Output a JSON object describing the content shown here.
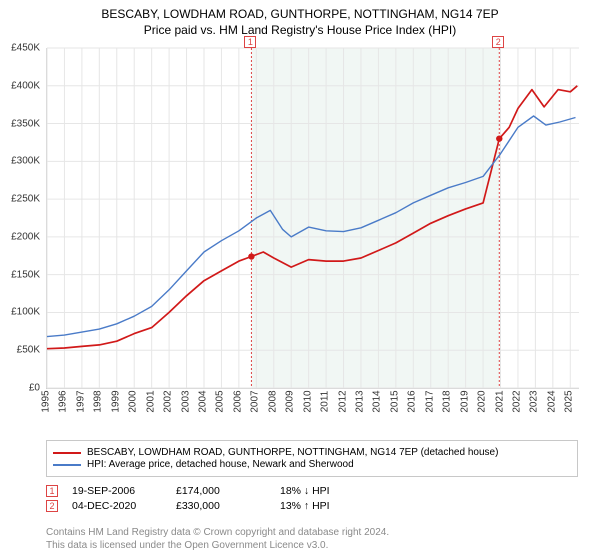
{
  "title_line1": "BESCABY, LOWDHAM ROAD, GUNTHORPE, NOTTINGHAM, NG14 7EP",
  "title_line2": "Price paid vs. HM Land Registry's House Price Index (HPI)",
  "chart": {
    "type": "line",
    "background_color": "#ffffff",
    "grid_color": "#e6e6e6",
    "shade_color": "#e6f0eb",
    "xlim": [
      1995,
      2025.5
    ],
    "ylim": [
      0,
      450000
    ],
    "ytick_step": 50000,
    "yticks_labels": [
      "£0",
      "£50K",
      "£100K",
      "£150K",
      "£200K",
      "£250K",
      "£300K",
      "£350K",
      "£400K",
      "£450K"
    ],
    "xticks": [
      1995,
      1996,
      1997,
      1998,
      1999,
      2000,
      2001,
      2002,
      2003,
      2004,
      2005,
      2006,
      2007,
      2008,
      2009,
      2010,
      2011,
      2012,
      2013,
      2014,
      2015,
      2016,
      2017,
      2018,
      2019,
      2020,
      2021,
      2022,
      2023,
      2024,
      2025
    ],
    "series": [
      {
        "name": "subject",
        "color": "#d11919",
        "width": 1.7,
        "label": "BESCABY, LOWDHAM ROAD, GUNTHORPE, NOTTINGHAM, NG14 7EP (detached house)",
        "points": [
          [
            1995,
            52000
          ],
          [
            1996,
            53000
          ],
          [
            1997,
            55000
          ],
          [
            1998,
            57000
          ],
          [
            1999,
            62000
          ],
          [
            2000,
            72000
          ],
          [
            2001,
            80000
          ],
          [
            2002,
            100000
          ],
          [
            2003,
            122000
          ],
          [
            2004,
            142000
          ],
          [
            2005,
            155000
          ],
          [
            2006,
            168000
          ],
          [
            2006.72,
            174000
          ],
          [
            2007.4,
            180000
          ],
          [
            2008,
            172000
          ],
          [
            2009,
            160000
          ],
          [
            2010,
            170000
          ],
          [
            2011,
            168000
          ],
          [
            2012,
            168000
          ],
          [
            2013,
            172000
          ],
          [
            2014,
            182000
          ],
          [
            2015,
            192000
          ],
          [
            2016,
            205000
          ],
          [
            2017,
            218000
          ],
          [
            2018,
            228000
          ],
          [
            2019,
            237000
          ],
          [
            2020,
            245000
          ],
          [
            2020.93,
            330000
          ],
          [
            2021.5,
            345000
          ],
          [
            2022,
            370000
          ],
          [
            2022.8,
            395000
          ],
          [
            2023.5,
            372000
          ],
          [
            2024.3,
            395000
          ],
          [
            2025,
            392000
          ],
          [
            2025.4,
            400000
          ]
        ]
      },
      {
        "name": "hpi",
        "color": "#4a7bc8",
        "width": 1.4,
        "label": "HPI: Average price, detached house, Newark and Sherwood",
        "points": [
          [
            1995,
            68000
          ],
          [
            1996,
            70000
          ],
          [
            1997,
            74000
          ],
          [
            1998,
            78000
          ],
          [
            1999,
            85000
          ],
          [
            2000,
            95000
          ],
          [
            2001,
            108000
          ],
          [
            2002,
            130000
          ],
          [
            2003,
            155000
          ],
          [
            2004,
            180000
          ],
          [
            2005,
            195000
          ],
          [
            2006,
            208000
          ],
          [
            2007,
            225000
          ],
          [
            2007.8,
            235000
          ],
          [
            2008.5,
            210000
          ],
          [
            2009,
            200000
          ],
          [
            2010,
            213000
          ],
          [
            2011,
            208000
          ],
          [
            2012,
            207000
          ],
          [
            2013,
            212000
          ],
          [
            2014,
            222000
          ],
          [
            2015,
            232000
          ],
          [
            2016,
            245000
          ],
          [
            2017,
            255000
          ],
          [
            2018,
            265000
          ],
          [
            2019,
            272000
          ],
          [
            2020,
            280000
          ],
          [
            2021,
            310000
          ],
          [
            2022,
            345000
          ],
          [
            2022.9,
            360000
          ],
          [
            2023.6,
            348000
          ],
          [
            2024.4,
            352000
          ],
          [
            2025.3,
            358000
          ]
        ]
      }
    ],
    "markers": [
      {
        "n": "1",
        "x": 2006.72,
        "y": 174000
      },
      {
        "n": "2",
        "x": 2020.93,
        "y": 330000
      }
    ]
  },
  "legend": {
    "row1": "BESCABY, LOWDHAM ROAD, GUNTHORPE, NOTTINGHAM, NG14 7EP (detached house)",
    "row2": "HPI: Average price, detached house, Newark and Sherwood"
  },
  "sales": [
    {
      "n": "1",
      "date": "19-SEP-2006",
      "price": "£174,000",
      "delta": "18% ↓ HPI"
    },
    {
      "n": "2",
      "date": "04-DEC-2020",
      "price": "£330,000",
      "delta": "13% ↑ HPI"
    }
  ],
  "footer1": "Contains HM Land Registry data © Crown copyright and database right 2024.",
  "footer2": "This data is licensed under the Open Government Licence v3.0."
}
